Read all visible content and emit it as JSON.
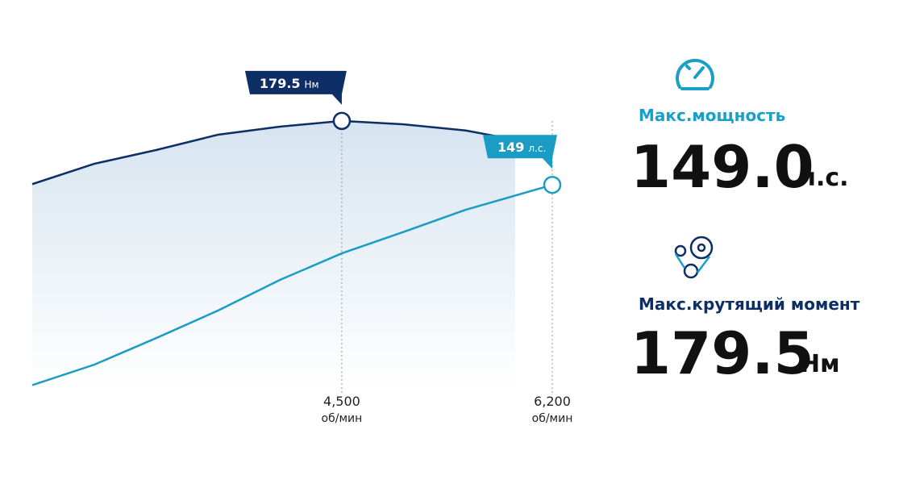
{
  "chart_data": {
    "type": "line",
    "x": [
      2000,
      2500,
      3000,
      3500,
      4000,
      4500,
      5000,
      5500,
      5900,
      6200
    ],
    "xlim": [
      2000,
      6200
    ],
    "xticks": [
      {
        "value": 4500,
        "label": "4,500"
      },
      {
        "value": 6200,
        "label": "6,200"
      }
    ],
    "x_unit": "об/мин",
    "ylim": [
      110,
      190
    ],
    "y2lim": [
      50,
      200
    ],
    "series": [
      {
        "color": "#0d2f66",
        "values": [
          163,
          168.3,
          171.9,
          175.9,
          178,
          179.5,
          178.6,
          177,
          174.6,
          null
        ]
      },
      {
        "color": "#1a9cc4",
        "axis": "y2",
        "values": [
          51,
          61,
          74,
          87.5,
          102.5,
          115.5,
          126,
          136.8,
          null,
          149
        ]
      }
    ],
    "peaks": [
      {
        "series": 0,
        "x": 4500,
        "value": 179.5,
        "unit": "Нм"
      },
      {
        "series": 1,
        "x": 6200,
        "value": 149,
        "unit": "л.с."
      }
    ]
  },
  "stats": [
    {
      "label": "Макс.мощность",
      "value": "149.0",
      "unit": "л.с."
    },
    {
      "label": "Макс.крутящий момент",
      "value": "179.5",
      "unit": "Нм"
    }
  ]
}
